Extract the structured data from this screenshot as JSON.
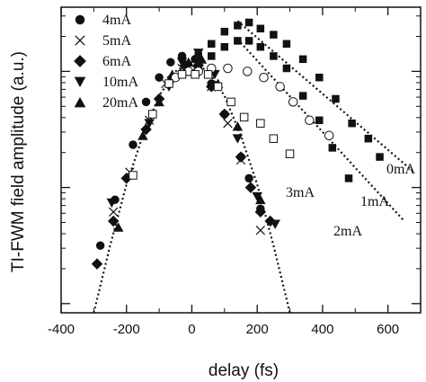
{
  "chart_data": {
    "type": "scatter",
    "xlabel": "delay (fs)",
    "ylabel": "TI-FWM field amplitude (a.u.)",
    "x_ticks": [
      -400,
      -200,
      0,
      200,
      400,
      600
    ],
    "x_tick_labels": [
      "-400",
      "-200",
      "0",
      "200",
      "400",
      "600"
    ],
    "xlim": [
      -400,
      700
    ],
    "ylim_fraction": [
      0,
      1
    ],
    "y_scale": "log",
    "y_tick_labels": [],
    "legend_position": "top-left",
    "legend": [
      {
        "label": "4mA",
        "marker": "circle"
      },
      {
        "label": "5mA",
        "marker": "cross"
      },
      {
        "label": "6mA",
        "marker": "diamond"
      },
      {
        "label": "10mA",
        "marker": "triangle-down"
      },
      {
        "label": "20mA",
        "marker": "triangle-up"
      }
    ],
    "curve_labels": [
      "0mA",
      "1mA",
      "3mA",
      "2mA"
    ],
    "series": [
      {
        "name": "4mA",
        "marker": "circle",
        "x": [
          -280,
          -235,
          -180,
          -140,
          -100,
          -65,
          -30,
          10,
          60,
          100,
          150,
          175,
          210
        ],
        "y": [
          0.22,
          0.37,
          0.55,
          0.69,
          0.77,
          0.82,
          0.84,
          0.83,
          0.75,
          0.65,
          0.51,
          0.44,
          0.34
        ]
      },
      {
        "name": "5mA",
        "marker": "cross",
        "x": [
          -240,
          -190,
          -130,
          -80,
          -30,
          10,
          60,
          110,
          150,
          210
        ],
        "y": [
          0.33,
          0.46,
          0.63,
          0.75,
          0.8,
          0.8,
          0.74,
          0.62,
          0.5,
          0.27
        ]
      },
      {
        "name": "6mA",
        "marker": "diamond",
        "x": [
          -290,
          -240,
          -200,
          -140,
          -100,
          -60,
          -20,
          20,
          60,
          100,
          150,
          180,
          210,
          240
        ],
        "y": [
          0.16,
          0.3,
          0.44,
          0.6,
          0.7,
          0.77,
          0.81,
          0.81,
          0.74,
          0.65,
          0.51,
          0.41,
          0.33,
          0.3
        ]
      },
      {
        "name": "10mA",
        "marker": "triangle-down",
        "x": [
          -245,
          -130,
          -70,
          -30,
          20,
          70,
          140,
          200,
          255
        ],
        "y": [
          0.36,
          0.62,
          0.74,
          0.82,
          0.85,
          0.78,
          0.57,
          0.38,
          0.29
        ]
      },
      {
        "name": "20mA",
        "marker": "triangle-up",
        "x": [
          -225,
          -150,
          -100,
          -60,
          -10,
          30,
          80,
          140,
          210
        ],
        "y": [
          0.28,
          0.58,
          0.69,
          0.78,
          0.82,
          0.83,
          0.75,
          0.61,
          0.37
        ]
      },
      {
        "name": "0mA",
        "marker": "square-filled",
        "x": [
          20,
          60,
          100,
          140,
          175,
          210,
          250,
          290,
          340,
          390,
          440,
          490,
          540,
          575
        ],
        "y": [
          0.84,
          0.88,
          0.92,
          0.94,
          0.95,
          0.93,
          0.91,
          0.88,
          0.83,
          0.77,
          0.7,
          0.62,
          0.57,
          0.51
        ]
      },
      {
        "name": "1mA",
        "marker": "square-filled",
        "x": [
          20,
          60,
          100,
          140,
          175,
          210,
          250,
          290,
          340,
          390,
          430,
          480
        ],
        "y": [
          0.8,
          0.84,
          0.87,
          0.89,
          0.89,
          0.87,
          0.84,
          0.8,
          0.71,
          0.63,
          0.54,
          0.44
        ]
      },
      {
        "name": "3mA",
        "marker": "circle-open",
        "x": [
          -50,
          -10,
          20,
          60,
          110,
          170,
          220,
          270,
          310,
          360,
          420
        ],
        "y": [
          0.77,
          0.79,
          0.79,
          0.8,
          0.8,
          0.79,
          0.77,
          0.74,
          0.69,
          0.63,
          0.58
        ]
      },
      {
        "name": "2mA",
        "marker": "square-open",
        "x": [
          -180,
          -120,
          -70,
          -30,
          10,
          50,
          80,
          120,
          160,
          210,
          250,
          300
        ],
        "y": [
          0.45,
          0.65,
          0.75,
          0.78,
          0.78,
          0.78,
          0.74,
          0.69,
          0.64,
          0.62,
          0.57,
          0.52
        ]
      }
    ],
    "fit_lines": [
      {
        "name": "0mA",
        "x": [
          140,
          680
        ],
        "y": [
          0.955,
          0.46
        ]
      },
      {
        "name": "1mA",
        "x": [
          140,
          650
        ],
        "y": [
          0.895,
          0.3
        ]
      },
      {
        "name": "gaussian",
        "x": [
          -300,
          -250,
          -200,
          -150,
          -100,
          -50,
          0,
          50,
          100,
          150,
          200,
          250,
          300
        ],
        "y": [
          0.0,
          0.22,
          0.42,
          0.58,
          0.71,
          0.79,
          0.82,
          0.79,
          0.71,
          0.58,
          0.42,
          0.22,
          0.0
        ]
      }
    ]
  }
}
